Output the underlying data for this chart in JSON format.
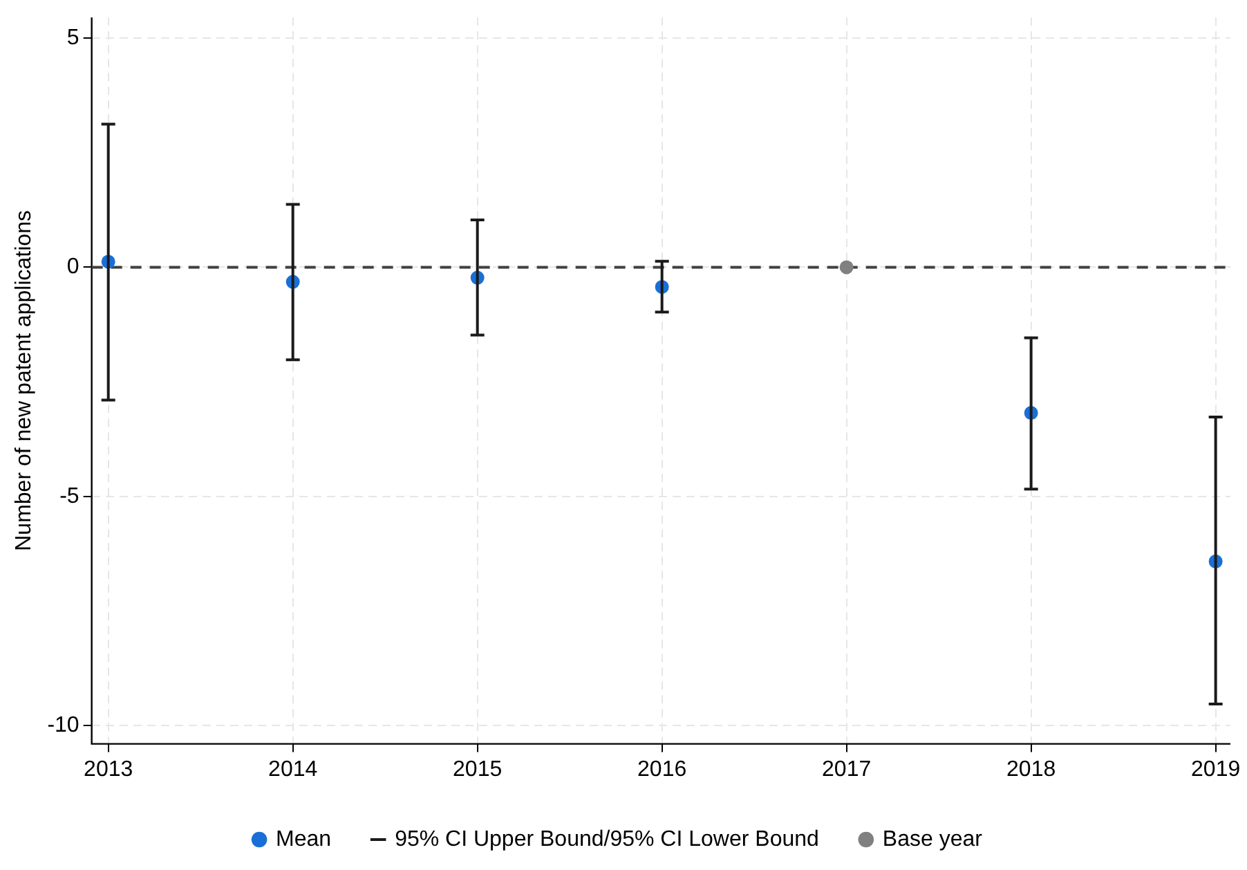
{
  "chart_data": {
    "type": "scatter",
    "ylabel": "Number of new patent applications",
    "x": [
      2013,
      2014,
      2015,
      2016,
      2018,
      2019
    ],
    "series": [
      {
        "name": "Mean",
        "color": "#1a6fd6",
        "values": [
          0.12,
          -0.32,
          -0.23,
          -0.43,
          -3.18,
          -6.42
        ],
        "errors": [
          [
            -2.9,
            3.12
          ],
          [
            -2.02,
            1.37
          ],
          [
            -1.48,
            1.03
          ],
          [
            -0.98,
            0.13
          ],
          [
            -4.84,
            -1.54
          ],
          [
            -9.53,
            -3.27
          ]
        ]
      },
      {
        "name": "Base year",
        "color": "#808080",
        "x": [
          2017
        ],
        "values": [
          0
        ]
      }
    ],
    "annotations": [
      "95% CI Upper Bound/95% CI Lower Bound"
    ],
    "xlim": [
      2012.91,
      2019.08
    ],
    "xticks": [
      2013,
      2014,
      2015,
      2016,
      2017,
      2018,
      2019
    ],
    "ylim": [
      -10.4,
      5.45
    ],
    "yticks": [
      -10,
      -5,
      0,
      5
    ],
    "ref_lines": [
      {
        "axis": "y",
        "value": 0,
        "color": "#404040",
        "line_style": "dashed"
      }
    ],
    "grid": true,
    "legend": "bottom",
    "marker": "circle"
  }
}
